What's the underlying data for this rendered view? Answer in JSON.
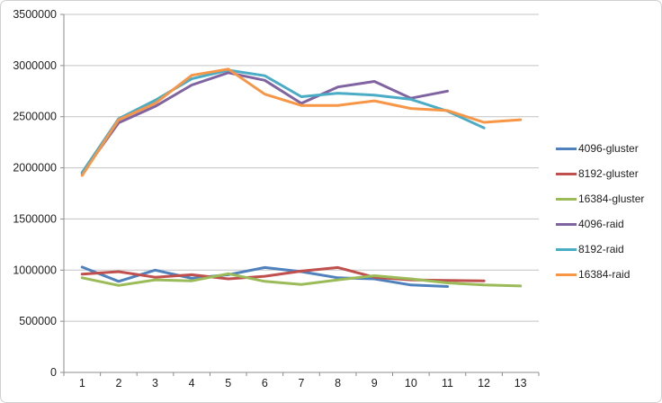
{
  "chart": {
    "background": "#ffffff",
    "frame_border_color": "#d0d0d0",
    "axis_color": "#8c8c8c",
    "gridline_color": "#c3c3c3",
    "tick_label_color": "#1f1f1f",
    "legend_text_color": "#1f1f1f"
  },
  "chart_data": {
    "type": "line",
    "title": "",
    "xlabel": "",
    "ylabel": "",
    "categories": [
      "1",
      "2",
      "3",
      "4",
      "5",
      "6",
      "7",
      "8",
      "9",
      "10",
      "11",
      "12",
      "13"
    ],
    "ylim": [
      0,
      3500000
    ],
    "y_tick_interval": 500000,
    "y_tick_labels": [
      "0",
      "500000",
      "1000000",
      "1500000",
      "2000000",
      "2500000",
      "3000000",
      "3500000"
    ],
    "grid": true,
    "legend_position": "right",
    "series": [
      {
        "name": "4096-gluster",
        "color": "#4F81BD",
        "values": [
          1030000,
          890000,
          1000000,
          920000,
          955000,
          1025000,
          985000,
          925000,
          915000,
          855000,
          840000,
          null,
          null
        ]
      },
      {
        "name": "8192-gluster",
        "color": "#C0504D",
        "values": [
          960000,
          985000,
          930000,
          955000,
          915000,
          940000,
          990000,
          1025000,
          930000,
          905000,
          900000,
          895000,
          null
        ]
      },
      {
        "name": "16384-gluster",
        "color": "#9BBB59",
        "values": [
          925000,
          850000,
          905000,
          895000,
          965000,
          890000,
          860000,
          905000,
          945000,
          915000,
          875000,
          855000,
          845000
        ]
      },
      {
        "name": "4096-raid",
        "color": "#8064A2",
        "values": [
          1945000,
          2440000,
          2600000,
          2810000,
          2930000,
          2855000,
          2630000,
          2790000,
          2845000,
          2680000,
          2750000,
          null,
          null
        ]
      },
      {
        "name": "8192-raid",
        "color": "#4BACC6",
        "values": [
          1955000,
          2480000,
          2660000,
          2870000,
          2955000,
          2900000,
          2695000,
          2730000,
          2710000,
          2670000,
          2555000,
          2390000,
          null
        ]
      },
      {
        "name": "16384-raid",
        "color": "#F79646",
        "values": [
          1925000,
          2470000,
          2630000,
          2905000,
          2965000,
          2720000,
          2610000,
          2610000,
          2655000,
          2580000,
          2560000,
          2445000,
          2470000
        ]
      }
    ]
  }
}
